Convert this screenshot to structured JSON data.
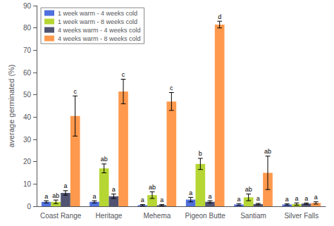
{
  "chart_data": {
    "type": "bar",
    "categories": [
      "Coast Range",
      "Heritage",
      "Mehema",
      "Pigeon Butte",
      "Santiam",
      "Silver Falls"
    ],
    "series": [
      {
        "name": "1 week warm - 4 weeks cold",
        "values": [
          2.0,
          2.0,
          0.5,
          3.0,
          0.8,
          0.8
        ],
        "errors": [
          0.5,
          0.5,
          0.3,
          1.0,
          0.4,
          0.3
        ],
        "annotations": [
          "a",
          "a",
          "a",
          "a",
          "a",
          "a"
        ]
      },
      {
        "name": "1 week warm - 8 weeks cold",
        "values": [
          2.0,
          17.0,
          5.0,
          19.0,
          4.0,
          1.0
        ],
        "errors": [
          0.8,
          2.0,
          1.5,
          2.5,
          1.5,
          0.5
        ],
        "annotations": [
          "ab",
          "ab",
          "ab",
          "b",
          "ab",
          "a"
        ]
      },
      {
        "name": "4 weeks warm - 4 weeks cold",
        "values": [
          6.0,
          4.5,
          0.5,
          2.0,
          1.0,
          1.2
        ],
        "errors": [
          1.0,
          1.0,
          0.3,
          0.5,
          0.3,
          0.3
        ],
        "annotations": [
          "a",
          "a",
          "a",
          "a",
          "a",
          "a"
        ]
      },
      {
        "name": "4 weeks warm - 8 weeks cold",
        "values": [
          40.5,
          51.5,
          47.0,
          81.5,
          15.0,
          1.5
        ],
        "errors": [
          9.0,
          5.5,
          4.0,
          1.5,
          7.5,
          0.5
        ],
        "annotations": [
          "c",
          "c",
          "c",
          "d",
          "ab",
          "a"
        ]
      }
    ],
    "ylabel": "average germinated (%)",
    "ylim": [
      0,
      90
    ],
    "yticks": [
      0,
      10,
      20,
      30,
      40,
      50,
      60,
      70,
      80,
      90
    ],
    "grid": false,
    "legend": "upper left"
  }
}
